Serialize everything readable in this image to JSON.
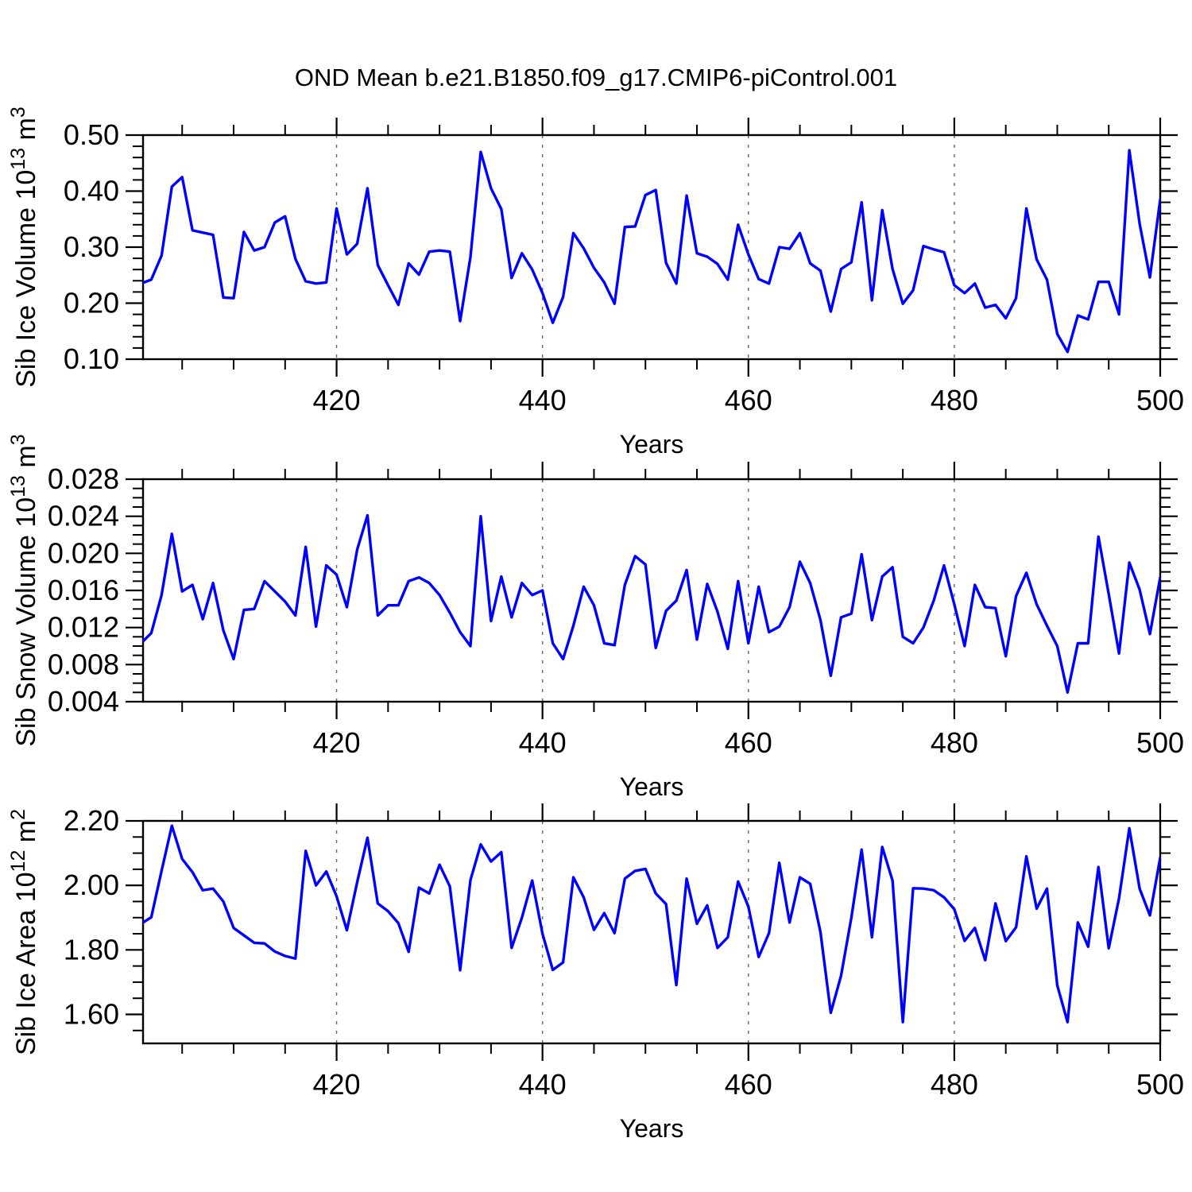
{
  "title": "OND Mean b.e21.B1850.f09_g17.CMIP6-piControl.001",
  "style": {
    "line_color": "#0000ff",
    "grid_color": "#666666",
    "axis_color": "#000000",
    "background": "#ffffff"
  },
  "years": [
    401,
    402,
    403,
    404,
    405,
    406,
    407,
    408,
    409,
    410,
    411,
    412,
    413,
    414,
    415,
    416,
    417,
    418,
    419,
    420,
    421,
    422,
    423,
    424,
    425,
    426,
    427,
    428,
    429,
    430,
    431,
    432,
    433,
    434,
    435,
    436,
    437,
    438,
    439,
    440,
    441,
    442,
    443,
    444,
    445,
    446,
    447,
    448,
    449,
    450,
    451,
    452,
    453,
    454,
    455,
    456,
    457,
    458,
    459,
    460,
    461,
    462,
    463,
    464,
    465,
    466,
    467,
    468,
    469,
    470,
    471,
    472,
    473,
    474,
    475,
    476,
    477,
    478,
    479,
    480,
    481,
    482,
    483,
    484,
    485,
    486,
    487,
    488,
    489,
    490,
    491,
    492,
    493,
    494,
    495,
    496,
    497,
    498,
    499,
    500
  ],
  "xaxis": {
    "xlabel": "Years",
    "xlim": [
      401.2,
      500
    ],
    "xticks": [
      "420",
      "440",
      "460",
      "480",
      "500"
    ],
    "xtick_values": [
      420,
      440,
      460,
      480,
      500
    ],
    "xminor_step": 5,
    "x_gridlines": [
      420,
      440,
      460,
      480
    ]
  },
  "chart_data": [
    {
      "type": "line",
      "name": "sib-ice-volume",
      "ylabel": "Sib Ice Volume 10^13 m^3",
      "ylabel_parts": [
        {
          "text": "Sib Ice Volume 10",
          "sup": false
        },
        {
          "text": "13",
          "sup": true
        },
        {
          "text": " m",
          "sup": false
        },
        {
          "text": "3",
          "sup": true
        }
      ],
      "xlabel": "Years",
      "ylim": [
        0.1,
        0.5
      ],
      "yticks": [
        "0.10",
        "0.20",
        "0.30",
        "0.40",
        "0.50"
      ],
      "ytick_values": [
        0.1,
        0.2,
        0.3,
        0.4,
        0.5
      ],
      "yminor_step": 0.02,
      "values": [
        0.235,
        0.242,
        0.285,
        0.408,
        0.425,
        0.33,
        0.326,
        0.322,
        0.21,
        0.209,
        0.327,
        0.294,
        0.3,
        0.344,
        0.355,
        0.279,
        0.239,
        0.235,
        0.237,
        0.369,
        0.287,
        0.306,
        0.405,
        0.268,
        0.232,
        0.197,
        0.271,
        0.251,
        0.292,
        0.294,
        0.292,
        0.168,
        0.282,
        0.47,
        0.405,
        0.368,
        0.245,
        0.289,
        0.26,
        0.218,
        0.165,
        0.211,
        0.325,
        0.298,
        0.263,
        0.237,
        0.199,
        0.336,
        0.337,
        0.393,
        0.402,
        0.272,
        0.235,
        0.392,
        0.289,
        0.283,
        0.27,
        0.242,
        0.34,
        0.287,
        0.243,
        0.235,
        0.3,
        0.297,
        0.325,
        0.271,
        0.258,
        0.185,
        0.261,
        0.273,
        0.38,
        0.205,
        0.366,
        0.261,
        0.199,
        0.223,
        0.302,
        0.296,
        0.291,
        0.232,
        0.218,
        0.235,
        0.192,
        0.197,
        0.173,
        0.209,
        0.369,
        0.278,
        0.242,
        0.145,
        0.113,
        0.178,
        0.171,
        0.238,
        0.238,
        0.18,
        0.473,
        0.342,
        0.246,
        0.385
      ]
    },
    {
      "type": "line",
      "name": "sib-snow-volume",
      "ylabel": "Sib Snow Volume 10^13 m^3",
      "ylabel_parts": [
        {
          "text": "Sib Snow Volume 10",
          "sup": false
        },
        {
          "text": "13",
          "sup": true
        },
        {
          "text": " m",
          "sup": false
        },
        {
          "text": "3",
          "sup": true
        }
      ],
      "xlabel": "Years",
      "ylim": [
        0.004,
        0.028
      ],
      "yticks": [
        "0.004",
        "0.008",
        "0.012",
        "0.016",
        "0.020",
        "0.024",
        "0.028"
      ],
      "ytick_values": [
        0.004,
        0.008,
        0.012,
        0.016,
        0.02,
        0.024,
        0.028
      ],
      "yminor_step": 0.001,
      "values": [
        0.0103,
        0.0114,
        0.0155,
        0.0221,
        0.0159,
        0.0166,
        0.0129,
        0.0168,
        0.0117,
        0.0086,
        0.0139,
        0.014,
        0.017,
        0.0159,
        0.0148,
        0.0133,
        0.0207,
        0.0121,
        0.0187,
        0.0177,
        0.0142,
        0.0204,
        0.0241,
        0.0133,
        0.0144,
        0.0144,
        0.017,
        0.0174,
        0.0168,
        0.0155,
        0.0136,
        0.0115,
        0.01,
        0.024,
        0.0127,
        0.0175,
        0.0131,
        0.0168,
        0.0155,
        0.016,
        0.0103,
        0.0086,
        0.0122,
        0.0164,
        0.0144,
        0.0103,
        0.0101,
        0.0166,
        0.0197,
        0.0188,
        0.0098,
        0.0138,
        0.0149,
        0.0182,
        0.0107,
        0.0167,
        0.0137,
        0.0097,
        0.017,
        0.0103,
        0.0164,
        0.0115,
        0.0121,
        0.0142,
        0.0191,
        0.0168,
        0.0128,
        0.0068,
        0.0131,
        0.0135,
        0.0199,
        0.0128,
        0.0175,
        0.0185,
        0.011,
        0.0103,
        0.012,
        0.0149,
        0.0187,
        0.0145,
        0.01,
        0.0166,
        0.0142,
        0.0141,
        0.0089,
        0.0154,
        0.0179,
        0.0145,
        0.0122,
        0.01,
        0.005,
        0.0103,
        0.0103,
        0.0218,
        0.0156,
        0.0092,
        0.019,
        0.0161,
        0.0113,
        0.0174
      ]
    },
    {
      "type": "line",
      "name": "sib-ice-area",
      "ylabel": "Sib Ice Area 10^12 m^2",
      "ylabel_parts": [
        {
          "text": "Sib Ice Area 10",
          "sup": false
        },
        {
          "text": "12",
          "sup": true
        },
        {
          "text": " m",
          "sup": false
        },
        {
          "text": "2",
          "sup": true
        }
      ],
      "xlabel": "Years",
      "ylim": [
        1.51,
        2.2
      ],
      "yticks": [
        "1.60",
        "1.80",
        "2.00",
        "2.20"
      ],
      "ytick_values": [
        1.6,
        1.8,
        2.0,
        2.2
      ],
      "yminor_step": 0.05,
      "values": [
        1.881,
        1.901,
        2.045,
        2.185,
        2.082,
        2.041,
        1.985,
        1.99,
        1.95,
        1.868,
        1.845,
        1.822,
        1.82,
        1.795,
        1.781,
        1.773,
        2.107,
        2.0,
        2.043,
        1.966,
        1.861,
        2.01,
        2.148,
        1.944,
        1.92,
        1.883,
        1.794,
        1.993,
        1.975,
        2.064,
        1.997,
        1.737,
        2.016,
        2.127,
        2.074,
        2.103,
        1.806,
        1.9,
        2.015,
        1.85,
        1.738,
        1.761,
        2.025,
        1.963,
        1.862,
        1.914,
        1.852,
        2.021,
        2.045,
        2.051,
        1.975,
        1.942,
        1.691,
        2.021,
        1.881,
        1.938,
        1.806,
        1.839,
        2.012,
        1.934,
        1.778,
        1.852,
        2.07,
        1.885,
        2.025,
        2.005,
        1.855,
        1.605,
        1.72,
        1.9,
        2.111,
        1.839,
        2.119,
        2.015,
        1.576,
        1.991,
        1.99,
        1.985,
        1.963,
        1.926,
        1.828,
        1.868,
        1.768,
        1.944,
        1.827,
        1.87,
        2.09,
        1.928,
        1.99,
        1.69,
        1.576,
        1.885,
        1.81,
        2.057,
        1.805,
        1.96,
        2.177,
        1.99,
        1.907,
        2.086
      ]
    }
  ]
}
